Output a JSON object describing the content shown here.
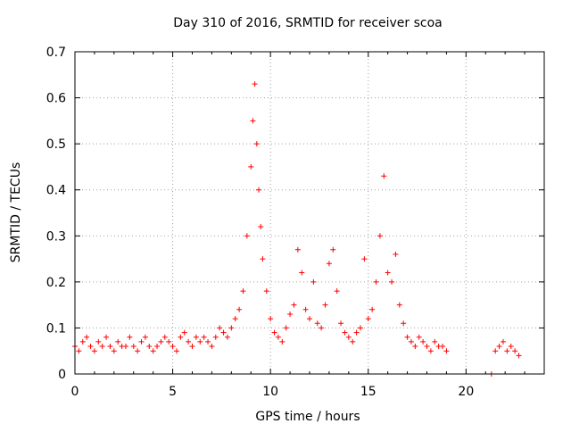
{
  "chart_data": {
    "type": "scatter",
    "title": "Day 310 of 2016, SRMTID for receiver scoa",
    "xlabel": "GPS time / hours",
    "ylabel": "SRMTID / TECUs",
    "xlim": [
      0,
      24
    ],
    "ylim": [
      0,
      0.7
    ],
    "x_ticks": [
      0,
      5,
      10,
      15,
      20
    ],
    "x_tick_labels": [
      "0",
      "5",
      "10",
      "15",
      "20"
    ],
    "y_ticks": [
      0,
      0.1,
      0.2,
      0.3,
      0.4,
      0.5,
      0.6,
      0.7
    ],
    "y_tick_labels": [
      "0",
      "0.1",
      "0.2",
      "0.3",
      "0.4",
      "0.5",
      "0.6",
      "0.7"
    ],
    "grid": true,
    "marker": "plus",
    "series": [
      {
        "name": "SRMTID",
        "color": "#ff0000",
        "x": [
          0.0,
          0.2,
          0.4,
          0.6,
          0.8,
          1.0,
          1.2,
          1.4,
          1.6,
          1.8,
          2.0,
          2.2,
          2.4,
          2.6,
          2.8,
          3.0,
          3.2,
          3.4,
          3.6,
          3.8,
          4.0,
          4.2,
          4.4,
          4.6,
          4.8,
          5.0,
          5.2,
          5.4,
          5.6,
          5.8,
          6.0,
          6.2,
          6.4,
          6.6,
          6.8,
          7.0,
          7.2,
          7.4,
          7.6,
          7.8,
          8.0,
          8.2,
          8.4,
          8.6,
          8.8,
          9.0,
          9.1,
          9.2,
          9.3,
          9.4,
          9.5,
          9.6,
          9.8,
          10.0,
          10.2,
          10.4,
          10.6,
          10.8,
          11.0,
          11.2,
          11.4,
          11.6,
          11.8,
          12.0,
          12.2,
          12.4,
          12.6,
          12.8,
          13.0,
          13.2,
          13.4,
          13.6,
          13.8,
          14.0,
          14.2,
          14.4,
          14.6,
          14.8,
          15.0,
          15.2,
          15.4,
          15.6,
          15.8,
          16.0,
          16.2,
          16.4,
          16.6,
          16.8,
          17.0,
          17.2,
          17.4,
          17.6,
          17.8,
          18.0,
          18.2,
          18.4,
          18.6,
          18.8,
          19.0,
          21.3,
          21.5,
          21.7,
          21.9,
          22.1,
          22.3,
          22.5,
          22.7
        ],
        "y": [
          0.06,
          0.05,
          0.07,
          0.08,
          0.06,
          0.05,
          0.07,
          0.06,
          0.08,
          0.06,
          0.05,
          0.07,
          0.06,
          0.06,
          0.08,
          0.06,
          0.05,
          0.07,
          0.08,
          0.06,
          0.05,
          0.06,
          0.07,
          0.08,
          0.07,
          0.06,
          0.05,
          0.08,
          0.09,
          0.07,
          0.06,
          0.08,
          0.07,
          0.08,
          0.07,
          0.06,
          0.08,
          0.1,
          0.09,
          0.08,
          0.1,
          0.12,
          0.14,
          0.18,
          0.3,
          0.45,
          0.55,
          0.63,
          0.5,
          0.4,
          0.32,
          0.25,
          0.18,
          0.12,
          0.09,
          0.08,
          0.07,
          0.1,
          0.13,
          0.15,
          0.27,
          0.22,
          0.14,
          0.12,
          0.2,
          0.11,
          0.1,
          0.15,
          0.24,
          0.27,
          0.18,
          0.11,
          0.09,
          0.08,
          0.07,
          0.09,
          0.1,
          0.25,
          0.12,
          0.14,
          0.2,
          0.3,
          0.43,
          0.22,
          0.2,
          0.26,
          0.15,
          0.11,
          0.08,
          0.07,
          0.06,
          0.08,
          0.07,
          0.06,
          0.05,
          0.07,
          0.06,
          0.06,
          0.05,
          0.0,
          0.05,
          0.06,
          0.07,
          0.05,
          0.06,
          0.05,
          0.04
        ]
      }
    ]
  }
}
